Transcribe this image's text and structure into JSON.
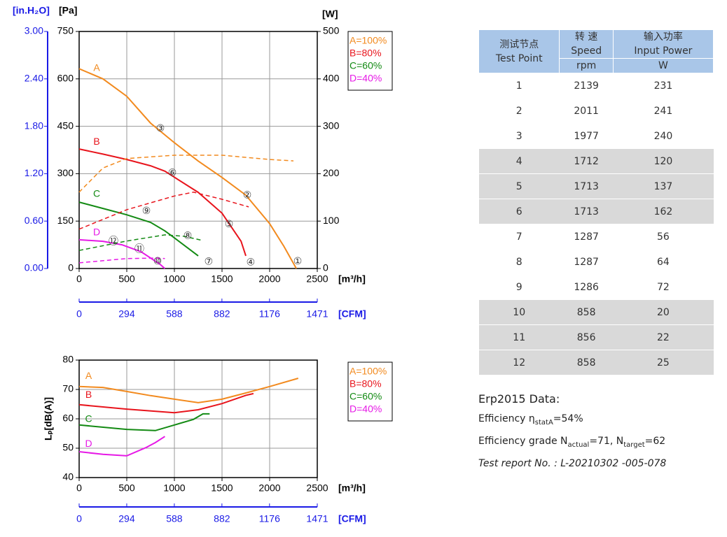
{
  "chart_data": [
    {
      "type": "line",
      "xlabel": "[m³/h]",
      "xlim": [
        0,
        2500
      ],
      "xticks": [
        0,
        500,
        1000,
        1500,
        2000,
        2500
      ],
      "x2label": "[CFM]",
      "x2lim": [
        0,
        1471
      ],
      "x2ticks": [
        0,
        294,
        588,
        882,
        1176,
        1471
      ],
      "ylabel": "[Pa]",
      "ylim": [
        0,
        750
      ],
      "yticks": [
        0,
        150,
        300,
        450,
        600,
        750
      ],
      "y2label": "[W]",
      "y2lim": [
        0,
        500
      ],
      "y2ticks": [
        0,
        100,
        200,
        300,
        400,
        500
      ],
      "y3label": "[in.H₂O]",
      "y3lim": [
        0,
        3
      ],
      "y3ticks": [
        {
          "value": 0,
          "label": "0.00"
        },
        {
          "value": 0.6,
          "label": "0.60"
        },
        {
          "value": 1.2,
          "label": "1.20"
        },
        {
          "value": 1.8,
          "label": "1.80"
        },
        {
          "value": 2.4,
          "label": "2.40"
        },
        {
          "value": 3,
          "label": "3.00"
        }
      ],
      "grid": true,
      "series": [
        {
          "name": "A=100%",
          "color": "#f28a1e",
          "x": [
            0,
            250,
            500,
            750,
            1000,
            1250,
            1500,
            1750,
            2000,
            2150,
            2280
          ],
          "values": [
            632,
            600,
            545,
            460,
            398,
            340,
            288,
            232,
            142,
            70,
            0
          ]
        },
        {
          "name": "B=80%",
          "color": "#e8141c",
          "x": [
            0,
            250,
            500,
            750,
            900,
            1250,
            1500,
            1700,
            1750
          ],
          "values": [
            378,
            362,
            345,
            325,
            308,
            241,
            175,
            86,
            40
          ]
        },
        {
          "name": "C=60%",
          "color": "#138a13",
          "x": [
            0,
            250,
            500,
            750,
            900,
            1000,
            1250
          ],
          "values": [
            210,
            190,
            170,
            146,
            119,
            97,
            40
          ]
        },
        {
          "name": "D=40%",
          "color": "#e619e6",
          "x": [
            0,
            250,
            450,
            650,
            850,
            900
          ],
          "values": [
            91,
            86,
            75,
            53,
            13,
            0
          ]
        },
        {
          "color": "#f28a1e",
          "axis": "y2",
          "style": "dashed",
          "x": [
            0,
            250,
            500,
            1000,
            1500,
            2000,
            2250
          ],
          "values": [
            161,
            212,
            232,
            239,
            239,
            230,
            227
          ]
        },
        {
          "color": "#e8141c",
          "axis": "y2",
          "style": "dashed",
          "x": [
            0,
            500,
            1000,
            1200,
            1500,
            1780
          ],
          "values": [
            83,
            124,
            153,
            161,
            146,
            130
          ]
        },
        {
          "color": "#138a13",
          "axis": "y2",
          "style": "dashed",
          "x": [
            0,
            500,
            900,
            1100,
            1300
          ],
          "values": [
            38,
            58,
            71,
            68,
            59
          ]
        },
        {
          "color": "#e619e6",
          "axis": "y2",
          "style": "dashed",
          "x": [
            0,
            500,
            800,
            900
          ],
          "values": [
            12,
            21,
            22,
            21
          ]
        }
      ],
      "labels": [
        {
          "text": "A",
          "x": 184,
          "y": 633,
          "color": "#f28a1e"
        },
        {
          "text": "B",
          "x": 184,
          "y": 400,
          "color": "#e8141c"
        },
        {
          "text": "C",
          "x": 184,
          "y": 235,
          "color": "#138a13"
        },
        {
          "text": "D",
          "x": 184,
          "y": 113,
          "color": "#e619e6"
        },
        {
          "text": "①",
          "x": 2294,
          "y": 22,
          "color": "#333333"
        },
        {
          "text": "②",
          "x": 1765,
          "y": 230,
          "color": "#333333"
        },
        {
          "text": "③",
          "x": 853,
          "y": 442,
          "color": "#333333"
        },
        {
          "text": "④",
          "x": 1801,
          "y": 18,
          "color": "#333333"
        },
        {
          "text": "⑤",
          "x": 1574,
          "y": 139,
          "color": "#333333"
        },
        {
          "text": "⑥",
          "x": 978,
          "y": 301,
          "color": "#333333"
        },
        {
          "text": "⑦",
          "x": 1360,
          "y": 20,
          "color": "#333333"
        },
        {
          "text": "⑧",
          "x": 1140,
          "y": 102,
          "color": "#333333"
        },
        {
          "text": "⑨",
          "x": 706,
          "y": 181,
          "color": "#333333"
        },
        {
          "text": "⑩",
          "x": 824,
          "y": 22,
          "color": "#333333"
        },
        {
          "text": "⑪",
          "x": 632,
          "y": 60,
          "color": "#333333"
        },
        {
          "text": "⑫",
          "x": 360,
          "y": 84,
          "color": "#333333"
        }
      ]
    },
    {
      "type": "line",
      "xlabel": "[m³/h]",
      "xlim": [
        0,
        2500
      ],
      "xticks": [
        0,
        500,
        1000,
        1500,
        2000,
        2500
      ],
      "x2label": "[CFM]",
      "x2lim": [
        0,
        1471
      ],
      "x2ticks": [
        0,
        294,
        588,
        882,
        1176,
        1471
      ],
      "ylabel": "Lₚ[dB(A)]",
      "ylim": [
        40,
        80
      ],
      "yticks": [
        40,
        50,
        60,
        70,
        80
      ],
      "grid": true,
      "series": [
        {
          "name": "A=100%",
          "color": "#f28a1e",
          "x": [
            0,
            250,
            500,
            750,
            1000,
            1250,
            1500,
            1750,
            2000,
            2300
          ],
          "values": [
            71,
            70.7,
            69.3,
            67.9,
            66.7,
            65.5,
            66.7,
            68.8,
            71,
            73.8
          ]
        },
        {
          "name": "B=80%",
          "color": "#e8141c",
          "x": [
            0,
            500,
            1000,
            1250,
            1500,
            1750,
            1830
          ],
          "values": [
            64.8,
            63.3,
            62.1,
            63.1,
            65.2,
            68,
            68.6
          ]
        },
        {
          "name": "C=60%",
          "color": "#138a13",
          "x": [
            0,
            500,
            800,
            1000,
            1200,
            1300,
            1370
          ],
          "values": [
            57.9,
            56.4,
            56,
            57.9,
            59.8,
            61.7,
            61.7
          ]
        },
        {
          "name": "D=40%",
          "color": "#e619e6",
          "x": [
            0,
            250,
            500,
            700,
            800,
            900
          ],
          "values": [
            48.8,
            47.9,
            47.4,
            50.2,
            51.9,
            54
          ]
        }
      ],
      "labels": [
        {
          "text": "A",
          "x": 100,
          "y": 74.5,
          "color": "#f28a1e"
        },
        {
          "text": "B",
          "x": 100,
          "y": 68,
          "color": "#e8141c"
        },
        {
          "text": "C",
          "x": 100,
          "y": 59.8,
          "color": "#138a13"
        },
        {
          "text": "D",
          "x": 100,
          "y": 51.3,
          "color": "#e619e6"
        }
      ]
    }
  ],
  "table": {
    "header": [
      [
        "测试节点",
        "Test Point"
      ],
      [
        "转 速",
        "Speed"
      ],
      [
        "输入功率",
        "Input Power"
      ]
    ],
    "units": [
      "rpm",
      "W"
    ],
    "rows": [
      [
        1,
        2139,
        231
      ],
      [
        2,
        2011,
        241
      ],
      [
        3,
        1977,
        240
      ],
      [
        4,
        1712,
        120
      ],
      [
        5,
        1713,
        137
      ],
      [
        6,
        1713,
        162
      ],
      [
        7,
        1287,
        56
      ],
      [
        8,
        1287,
        64
      ],
      [
        9,
        1286,
        72
      ],
      [
        10,
        858,
        20
      ],
      [
        11,
        856,
        22
      ],
      [
        12,
        858,
        25
      ]
    ]
  },
  "notes": {
    "title": "Erp2015  Data:",
    "efficiency": [
      "Efficiency η",
      "statA",
      "=54%"
    ],
    "grade": [
      "Efficiency grade  N",
      "actual",
      "=71, N",
      "target",
      "=62"
    ],
    "report": "Test report No. : L-20210302 -005-078"
  }
}
